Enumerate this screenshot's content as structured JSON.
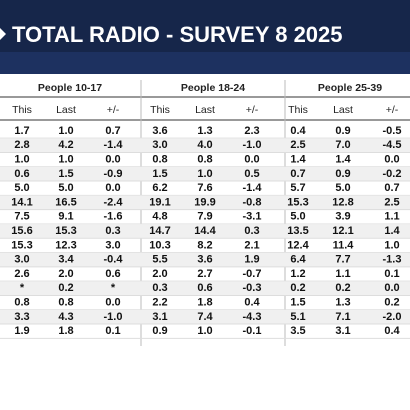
{
  "header": {
    "title": "TOTAL RADIO - SURVEY 8 2025"
  },
  "table": {
    "groups": [
      "People 10-17",
      "People 18-24",
      "People 25-39"
    ],
    "columns": [
      "This",
      "Last",
      "+/-",
      "This",
      "Last",
      "+/-",
      "This",
      "Last",
      "+/-"
    ],
    "rows": [
      [
        "1.7",
        "1.0",
        "0.7",
        "3.6",
        "1.3",
        "2.3",
        "0.4",
        "0.9",
        "-0.5"
      ],
      [
        "2.8",
        "4.2",
        "-1.4",
        "3.0",
        "4.0",
        "-1.0",
        "2.5",
        "7.0",
        "-4.5"
      ],
      [
        "1.0",
        "1.0",
        "0.0",
        "0.8",
        "0.8",
        "0.0",
        "1.4",
        "1.4",
        "0.0"
      ],
      [
        "0.6",
        "1.5",
        "-0.9",
        "1.5",
        "1.0",
        "0.5",
        "0.7",
        "0.9",
        "-0.2"
      ],
      [
        "5.0",
        "5.0",
        "0.0",
        "6.2",
        "7.6",
        "-1.4",
        "5.7",
        "5.0",
        "0.7"
      ],
      [
        "14.1",
        "16.5",
        "-2.4",
        "19.1",
        "19.9",
        "-0.8",
        "15.3",
        "12.8",
        "2.5"
      ],
      [
        "7.5",
        "9.1",
        "-1.6",
        "4.8",
        "7.9",
        "-3.1",
        "5.0",
        "3.9",
        "1.1"
      ],
      [
        "15.6",
        "15.3",
        "0.3",
        "14.7",
        "14.4",
        "0.3",
        "13.5",
        "12.1",
        "1.4"
      ],
      [
        "15.3",
        "12.3",
        "3.0",
        "10.3",
        "8.2",
        "2.1",
        "12.4",
        "11.4",
        "1.0"
      ],
      [
        "3.0",
        "3.4",
        "-0.4",
        "5.5",
        "3.6",
        "1.9",
        "6.4",
        "7.7",
        "-1.3"
      ],
      [
        "2.6",
        "2.0",
        "0.6",
        "2.0",
        "2.7",
        "-0.7",
        "1.2",
        "1.1",
        "0.1"
      ],
      [
        "*",
        "0.2",
        "*",
        "0.3",
        "0.6",
        "-0.3",
        "0.2",
        "0.2",
        "0.0"
      ],
      [
        "0.8",
        "0.8",
        "0.0",
        "2.2",
        "1.8",
        "0.4",
        "1.5",
        "1.3",
        "0.2"
      ],
      [
        "3.3",
        "4.3",
        "-1.0",
        "3.1",
        "7.4",
        "-4.3",
        "5.1",
        "7.1",
        "-2.0"
      ],
      [
        "1.9",
        "1.8",
        "0.1",
        "0.9",
        "1.0",
        "-0.1",
        "3.5",
        "3.1",
        "0.4"
      ]
    ]
  }
}
